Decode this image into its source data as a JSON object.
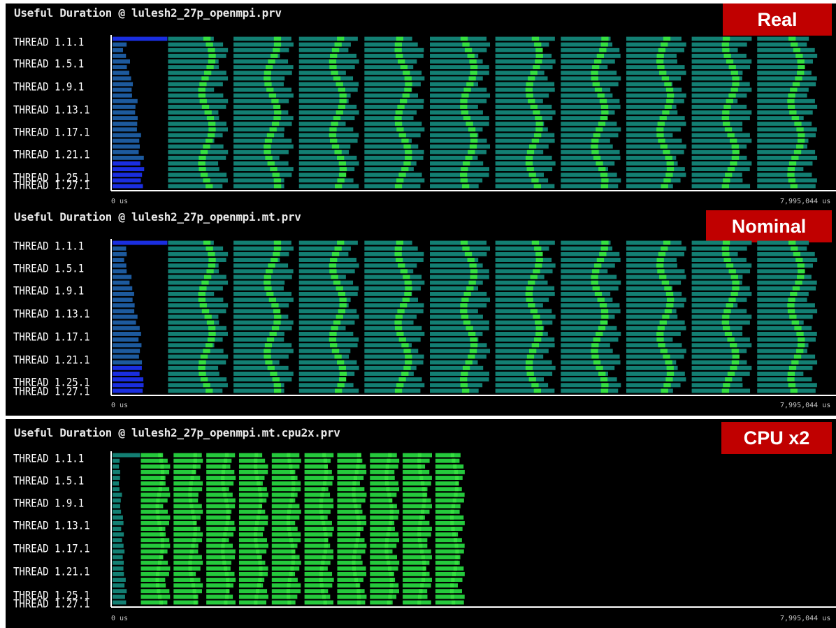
{
  "colors": {
    "background": "#000000",
    "axis": "#ffffff",
    "badge": "#c00000",
    "teal": "#137f73",
    "green": "#25c93c",
    "bright_green": "#35e040",
    "blue_dark": "#1d5a9e",
    "blue_bright": "#1a2ee0"
  },
  "panels": [
    {
      "title": "Useful Duration @ lulesh2_27p_openmpi.prv",
      "badge": "Real"
    },
    {
      "title": "Useful Duration @ lulesh2_27p_openmpi.mt.prv",
      "badge": "Nominal"
    },
    {
      "title": "Useful Duration @ lulesh2_27p_openmpi.mt.cpu2x.prv",
      "badge": "CPU x2"
    }
  ],
  "chart_data": [
    {
      "type": "timeline",
      "title": "Useful Duration @ lulesh2_27p_openmpi.prv",
      "x_unit": "us",
      "xlim": [
        0,
        7995044
      ],
      "x_tick_labels": [
        "0 us",
        "7,995,044 us"
      ],
      "y_tick_labels": [
        "THREAD 1.1.1",
        "THREAD 1.5.1",
        "THREAD 1.9.1",
        "THREAD 1.13.1",
        "THREAD 1.17.1",
        "THREAD 1.21.1",
        "THREAD 1.25.1",
        "THREAD 1.27.1"
      ],
      "threads": 27,
      "initial_phase_end_us": 620000,
      "iterations": 10,
      "iteration_period_us": 722000,
      "iterations_end_us": 7995044,
      "initial_color": "blue",
      "iteration_color": "teal",
      "boundary_color": "bright_green"
    },
    {
      "type": "timeline",
      "title": "Useful Duration @ lulesh2_27p_openmpi.mt.prv",
      "x_unit": "us",
      "xlim": [
        0,
        7995044
      ],
      "x_tick_labels": [
        "0 us",
        "7,995,044 us"
      ],
      "y_tick_labels": [
        "THREAD 1.1.1",
        "THREAD 1.5.1",
        "THREAD 1.9.1",
        "THREAD 1.13.1",
        "THREAD 1.17.1",
        "THREAD 1.21.1",
        "THREAD 1.25.1",
        "THREAD 1.27.1"
      ],
      "threads": 27,
      "initial_phase_end_us": 620000,
      "iterations": 10,
      "iteration_period_us": 722000,
      "iterations_end_us": 7995044,
      "initial_color": "blue",
      "iteration_color": "teal",
      "boundary_color": "bright_green"
    },
    {
      "type": "timeline",
      "title": "Useful Duration @ lulesh2_27p_openmpi.mt.cpu2x.prv",
      "x_unit": "us",
      "xlim": [
        0,
        7995044
      ],
      "x_tick_labels": [
        "0 us",
        "7,995,044 us"
      ],
      "y_tick_labels": [
        "THREAD 1.1.1",
        "THREAD 1.5.1",
        "THREAD 1.9.1",
        "THREAD 1.13.1",
        "THREAD 1.17.1",
        "THREAD 1.21.1",
        "THREAD 1.25.1",
        "THREAD 1.27.1"
      ],
      "threads": 27,
      "initial_phase_end_us": 320000,
      "iterations": 10,
      "iteration_period_us": 361000,
      "iterations_end_us": 3970000,
      "initial_color": "teal",
      "iteration_color": "green",
      "boundary_color": "bright_green"
    }
  ]
}
